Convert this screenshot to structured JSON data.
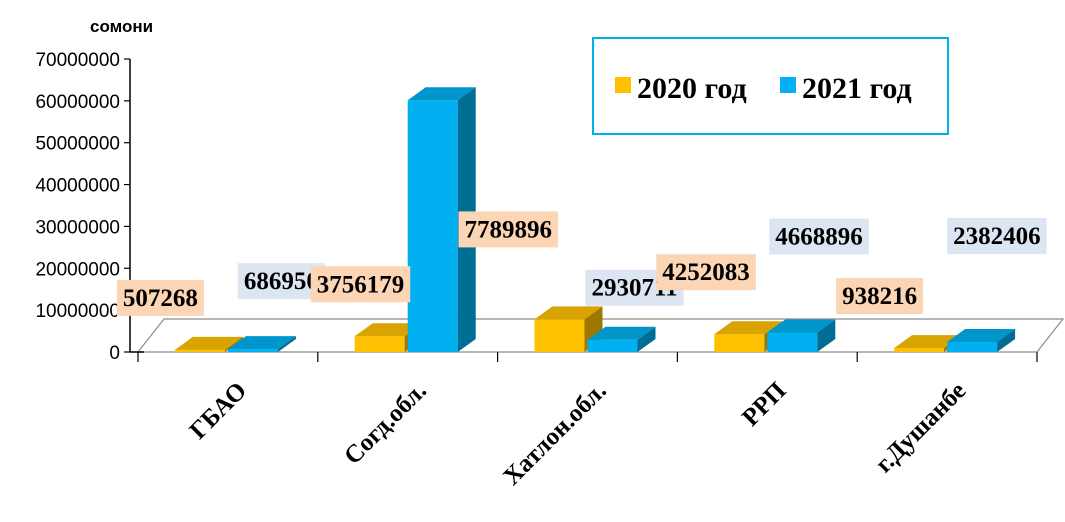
{
  "chart_data": {
    "type": "bar",
    "unit_label": "сомони",
    "categories": [
      "ГБАО",
      "Согд.обл.",
      "Хатлон.обл.",
      "РРП",
      "г.Душанбе"
    ],
    "series": [
      {
        "name": "2020 год",
        "values": [
          507268,
          3756179,
          7789896,
          4252083,
          938216
        ],
        "color": "#FFC000",
        "label_bg": "#FCD5B5"
      },
      {
        "name": "2021 год",
        "values": [
          686950,
          60151401,
          2930711,
          4668896,
          2382406
        ],
        "color": "#00B0F0",
        "label_bg": "#DCE6F2"
      }
    ],
    "ylim": [
      0,
      70000000
    ],
    "yticks": [
      "0",
      "10000000",
      "20000000",
      "30000000",
      "40000000",
      "50000000",
      "60000000",
      "70000000"
    ],
    "legend_position": "top-right",
    "legend_border_color": "#00B0F0"
  }
}
